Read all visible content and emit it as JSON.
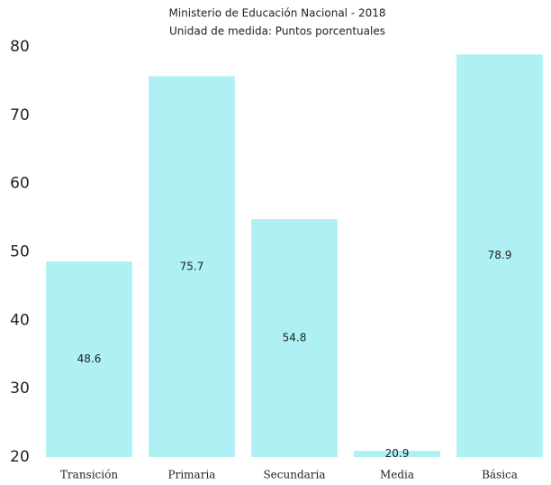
{
  "chart_data": {
    "type": "bar",
    "subtitle": [
      "Ministerio de Educación Nacional - 2018",
      "Unidad de medida: Puntos porcentuales"
    ],
    "categories": [
      "Transición",
      "Primaria",
      "Secundaria",
      "Media",
      "Básica"
    ],
    "values": [
      48.6,
      75.7,
      54.8,
      20.9,
      78.9
    ],
    "color": "#aef0f4",
    "ylim": [
      20,
      80
    ],
    "yticks": [
      20,
      30,
      40,
      50,
      60,
      70,
      80
    ],
    "grid": false
  }
}
